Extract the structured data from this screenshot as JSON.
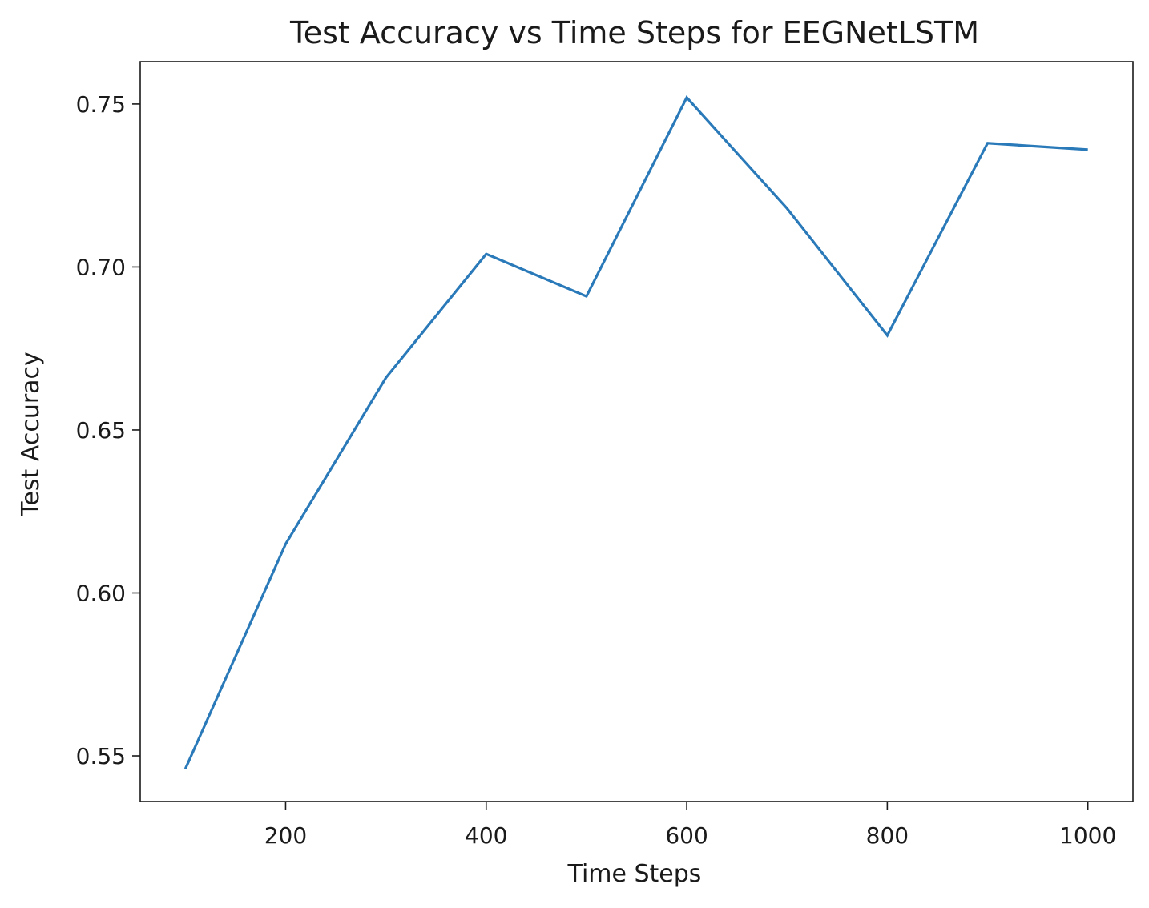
{
  "chart_data": {
    "type": "line",
    "title": "Test Accuracy vs Time Steps for EEGNetLSTM",
    "xlabel": "Time Steps",
    "ylabel": "Test Accuracy",
    "xlim": [
      55,
      1045
    ],
    "ylim": [
      0.536,
      0.763
    ],
    "x_ticks": [
      200,
      400,
      600,
      800,
      1000
    ],
    "x_tick_labels": [
      "200",
      "400",
      "600",
      "800",
      "1000"
    ],
    "y_ticks": [
      0.55,
      0.6,
      0.65,
      0.7,
      0.75
    ],
    "y_tick_labels": [
      "0.55",
      "0.60",
      "0.65",
      "0.70",
      "0.75"
    ],
    "grid": false,
    "series": [
      {
        "color": "#2a7ab9",
        "x": [
          100,
          200,
          300,
          400,
          500,
          600,
          700,
          800,
          900,
          1000
        ],
        "y": [
          0.546,
          0.615,
          0.666,
          0.704,
          0.691,
          0.752,
          0.718,
          0.679,
          0.738,
          0.736
        ]
      }
    ]
  }
}
